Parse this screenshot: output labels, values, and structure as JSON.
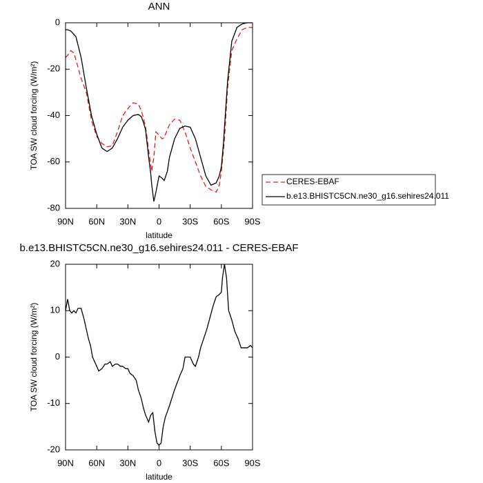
{
  "chart_data": [
    {
      "type": "line",
      "title": "ANN",
      "x_label": "latitude",
      "y_label": "TOA SW cloud forcing (W/m²)",
      "x": [
        90,
        88,
        85,
        82,
        80,
        75,
        70,
        65,
        60,
        55,
        50,
        45,
        40,
        35,
        30,
        25,
        20,
        17,
        15,
        13,
        12,
        10,
        8,
        7,
        5,
        3,
        0,
        -3,
        -5,
        -8,
        -10,
        -15,
        -20,
        -25,
        -30,
        -35,
        -40,
        -45,
        -50,
        -55,
        -58,
        -60,
        -62,
        -63,
        -66,
        -70,
        -75,
        -80,
        -85,
        -90
      ],
      "series": [
        {
          "name": "CERES-EBAF",
          "color": "#e41a1c",
          "dash": true,
          "values": [
            -15,
            -14,
            -12,
            -13,
            -16,
            -24,
            -30,
            -42,
            -49,
            -52,
            -53.5,
            -53,
            -47,
            -40,
            -37,
            -34.5,
            -35,
            -38,
            -41,
            -45,
            -48,
            -55,
            -61,
            -64,
            -58,
            -47,
            -48.5,
            -50,
            -49.5,
            -46,
            -44,
            -41.5,
            -42,
            -47,
            -54,
            -60,
            -66,
            -70.5,
            -72,
            -73,
            -70,
            -64,
            -55,
            -50,
            -28,
            -12,
            -7,
            -3,
            -2,
            -2
          ]
        },
        {
          "name": "b.e13.BHISTC5CN.ne30_g16.sehires24.011",
          "color": "#000000",
          "dash": false,
          "values": [
            -3,
            -3,
            -3.5,
            -5,
            -6,
            -15,
            -28,
            -40,
            -48,
            -54,
            -55.5,
            -54,
            -50,
            -45,
            -42,
            -40,
            -39.5,
            -40.5,
            -43,
            -46,
            -50,
            -58,
            -65,
            -70,
            -77,
            -73,
            -66,
            -67,
            -68,
            -64,
            -58,
            -50,
            -45.5,
            -44.5,
            -45,
            -50,
            -58,
            -66,
            -70,
            -69,
            -66,
            -62,
            -52,
            -45,
            -25,
            -8,
            -2,
            -0.5,
            0,
            0
          ]
        }
      ],
      "xlim": [
        90,
        -90
      ],
      "ylim": [
        -80,
        0
      ],
      "xticks": [
        {
          "value": 90,
          "label": "90N"
        },
        {
          "value": 60,
          "label": "60N"
        },
        {
          "value": 30,
          "label": "30N"
        },
        0,
        {
          "value": -30,
          "label": "30S"
        },
        {
          "value": -60,
          "label": "60S"
        },
        {
          "value": -90,
          "label": "90S"
        }
      ],
      "yticks": [
        -80,
        -60,
        -40,
        -20,
        0
      ],
      "legend": "right"
    },
    {
      "type": "line",
      "title": "b.e13.BHISTC5CN.ne30_g16.sehires24.011 - CERES-EBAF",
      "x_label": "latitude",
      "y_label": "TOA SW cloud forcing (W/m²)",
      "x": [
        90,
        88,
        86,
        84,
        82,
        80,
        78,
        75,
        72,
        70,
        68,
        66,
        64,
        62,
        60,
        58,
        55,
        52,
        50,
        47,
        45,
        42,
        40,
        37,
        35,
        32,
        30,
        28,
        25,
        22,
        20,
        17,
        15,
        13,
        11,
        10,
        8,
        6,
        4,
        2,
        0,
        -2,
        -4,
        -6,
        -10,
        -15,
        -20,
        -23,
        -25,
        -28,
        -30,
        -33,
        -35,
        -38,
        -40,
        -43,
        -46,
        -49,
        -52,
        -55,
        -58,
        -60,
        -61,
        -63,
        -65,
        -67,
        -70,
        -73,
        -76,
        -79,
        -82,
        -85,
        -88,
        -90
      ],
      "series": [
        {
          "color": "#000000",
          "dash": false,
          "values": [
            10,
            12.5,
            10,
            9.5,
            10,
            9.5,
            10.5,
            10.5,
            8,
            6,
            4,
            2.5,
            0,
            -1,
            -2,
            -3,
            -2.5,
            -1.5,
            -1.5,
            -1,
            -2,
            -1.5,
            -1.5,
            -2,
            -2,
            -2.5,
            -2.5,
            -3.5,
            -4,
            -5,
            -7,
            -9,
            -11,
            -12.5,
            -13.5,
            -14,
            -12.5,
            -12,
            -16,
            -18.5,
            -19,
            -18.5,
            -15,
            -13,
            -10.5,
            -7,
            -4,
            -2.5,
            0,
            0,
            0,
            -1.5,
            -2,
            0,
            2,
            4,
            6,
            8.5,
            11,
            13,
            13.5,
            14,
            17,
            20,
            17,
            10,
            8,
            5.5,
            4,
            2,
            2,
            2,
            2.5,
            2
          ]
        }
      ],
      "xlim": [
        90,
        -90
      ],
      "ylim": [
        -20,
        20
      ],
      "xticks": [
        {
          "value": 90,
          "label": "90N"
        },
        {
          "value": 60,
          "label": "60N"
        },
        {
          "value": 30,
          "label": "30N"
        },
        0,
        {
          "value": -30,
          "label": "30S"
        },
        {
          "value": -60,
          "label": "60S"
        },
        {
          "value": -90,
          "label": "90S"
        }
      ],
      "yticks": [
        -20,
        -10,
        0,
        10,
        20
      ]
    }
  ]
}
